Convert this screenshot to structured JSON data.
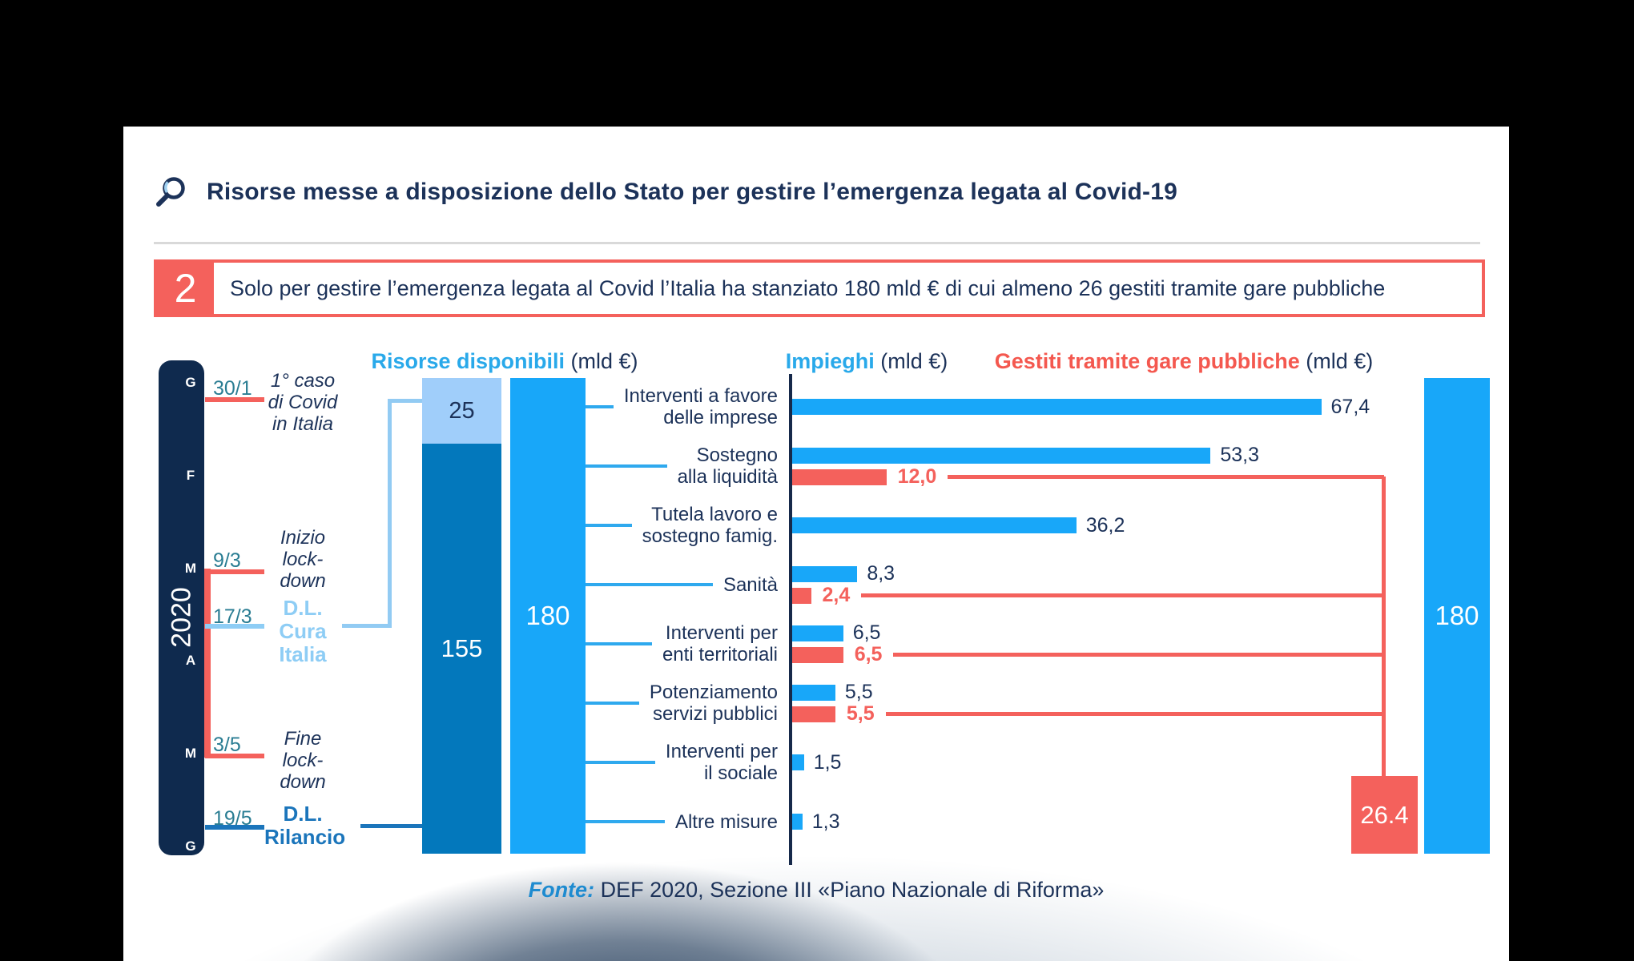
{
  "header": {
    "title": "Risorse messe a disposizione dello Stato per gestire l’emergenza legata al Covid-19",
    "icon": "magnifier-icon"
  },
  "callout": {
    "number": "2",
    "text": "Solo per gestire l’emergenza legata al Covid l’Italia ha stanziato 180 mld € di cui almeno 26 gestiti tramite gare pubbliche",
    "accent_color": "#f4615c"
  },
  "section_headers": {
    "risorse": {
      "label": "Risorse disponibili",
      "unit": " (mld €)",
      "color": "#29a9ea"
    },
    "impieghi": {
      "label": "Impieghi",
      "unit": " (mld €)",
      "color": "#29a9ea"
    },
    "gare": {
      "label": "Gestiti tramite gare pubbliche",
      "unit": " (mld €)",
      "color": "#f4584f"
    }
  },
  "timeline": {
    "year": "2020",
    "months": [
      "G",
      "F",
      "M",
      "A",
      "M",
      "G"
    ],
    "events": [
      {
        "date": "30/1",
        "label": "1° caso\ndi Covid\nin Italia",
        "kind": "event",
        "line_color": "#f4615c"
      },
      {
        "date": "9/3",
        "label": "Inizio\nlock-\ndown",
        "kind": "event",
        "line_color": "#f4615c"
      },
      {
        "date": "17/3",
        "label": "D.L.\nCura\nItalia",
        "kind": "decree-cura",
        "line_color": "#8ecdf5"
      },
      {
        "date": "3/5",
        "label": "Fine\nlock-\ndown",
        "kind": "event",
        "line_color": "#f4615c"
      },
      {
        "date": "19/5",
        "label": "D.L.\nRilancio",
        "kind": "decree-rilancio",
        "line_color": "#1b75bb"
      }
    ]
  },
  "chart_data": [
    {
      "type": "bar",
      "title": "Risorse disponibili",
      "unit": "mld €",
      "orientation": "vertical-stacked",
      "ylim": [
        0,
        180
      ],
      "stack": {
        "segments": [
          {
            "label": "25",
            "value": 25,
            "color": "#a0cefa"
          },
          {
            "label": "155",
            "value": 155,
            "color": "#0378bc"
          }
        ]
      },
      "total_bar": {
        "label": "180",
        "value": 180,
        "color": "#18a7f9"
      }
    },
    {
      "type": "bar",
      "title": "Impieghi",
      "unit": "mld €",
      "orientation": "horizontal",
      "xlim": [
        0,
        180
      ],
      "categories": [
        "Interventi a favore\ndelle imprese",
        "Sostegno\nalla liquidità",
        "Tutela lavoro e\nsostegno famig.",
        "Sanità",
        "Interventi per\nenti territoriali",
        "Potenziamento\nservizi pubblici",
        "Interventi per\nil sociale",
        "Altre misure"
      ],
      "series": [
        {
          "name": "Impieghi",
          "color": "#18a7f9",
          "values": [
            67.4,
            53.3,
            36.2,
            8.3,
            6.5,
            5.5,
            1.5,
            1.3
          ],
          "value_labels": [
            "67,4",
            "53,3",
            "36,2",
            "8,3",
            "6,5",
            "5,5",
            "1,5",
            "1,3"
          ]
        },
        {
          "name": "Gestiti tramite gare pubbliche",
          "color": "#f4615c",
          "values": [
            null,
            12.0,
            null,
            2.4,
            6.5,
            5.5,
            null,
            null
          ],
          "value_labels": [
            null,
            "12,0",
            null,
            "2,4",
            "6,5",
            "5,5",
            null,
            null
          ]
        }
      ],
      "gare_total": {
        "label": "26.4",
        "value": 26.4,
        "color": "#f4615c"
      },
      "stanziato_total": {
        "label": "180",
        "value": 180,
        "color": "#18a7f9"
      }
    }
  ],
  "footer": {
    "source_label": "Fonte:",
    "source_text": " DEF 2020, Sezione III «Piano Nazionale di Riforma»"
  }
}
